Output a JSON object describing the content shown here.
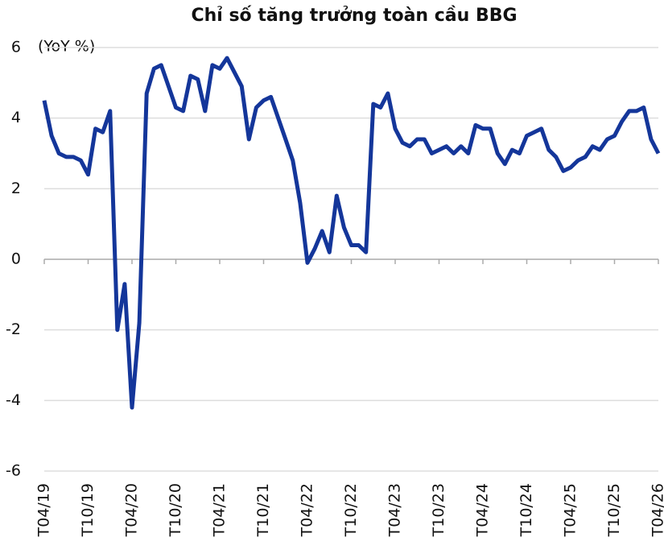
{
  "chart_data": {
    "type": "line",
    "title": "Chỉ số tăng trưởng toàn cầu  BBG",
    "y_label": "(YoY %)",
    "categories": [
      "T04/19",
      null,
      null,
      null,
      null,
      null,
      "T10/19",
      null,
      null,
      null,
      null,
      null,
      "T04/20",
      null,
      null,
      null,
      null,
      null,
      "T10/20",
      null,
      null,
      null,
      null,
      null,
      "T04/21",
      null,
      null,
      null,
      null,
      null,
      "T10/21",
      null,
      null,
      null,
      null,
      null,
      "T04/22",
      null,
      null,
      null,
      null,
      null,
      "T10/22",
      null,
      null,
      null,
      null,
      null,
      "T04/23",
      null,
      null,
      null,
      null,
      null,
      "T10/23",
      null,
      null,
      null,
      null,
      null,
      "T04/24",
      null,
      null,
      null,
      null,
      null,
      "T10/24",
      null,
      null,
      null,
      null,
      null,
      "T04/25",
      null,
      null,
      null,
      null,
      null,
      "T10/25",
      null,
      null,
      null,
      null,
      null,
      "T04/26"
    ],
    "series": [
      {
        "name": "BBG",
        "color": "#14369a",
        "values": [
          4.5,
          3.5,
          3.0,
          2.9,
          2.9,
          2.8,
          2.4,
          3.7,
          3.6,
          4.2,
          -2.0,
          -0.7,
          -4.2,
          -1.8,
          4.7,
          5.4,
          5.5,
          4.9,
          4.3,
          4.2,
          5.2,
          5.1,
          4.2,
          5.5,
          5.4,
          5.7,
          5.3,
          4.9,
          3.4,
          4.3,
          4.5,
          4.6,
          4.0,
          3.4,
          2.8,
          1.6,
          -0.1,
          0.3,
          0.8,
          0.2,
          1.8,
          0.9,
          0.4,
          0.4,
          0.2,
          4.4,
          4.3,
          4.7,
          3.7,
          3.3,
          3.2,
          3.4,
          3.4,
          3.0,
          3.1,
          3.2,
          3.0,
          3.2,
          3.0,
          3.8,
          3.7,
          3.7,
          3.0,
          2.7,
          3.1,
          3.0,
          3.5,
          3.6,
          3.7,
          3.1,
          2.9,
          2.5,
          2.6,
          2.8,
          2.9,
          3.2,
          3.1,
          3.4,
          3.5,
          3.9,
          4.2,
          4.2,
          4.3,
          3.4,
          3.0
        ]
      }
    ],
    "ylim": [
      -6,
      6
    ],
    "yticks": [
      -6,
      -4,
      -2,
      0,
      2,
      4,
      6
    ],
    "grid": true
  }
}
